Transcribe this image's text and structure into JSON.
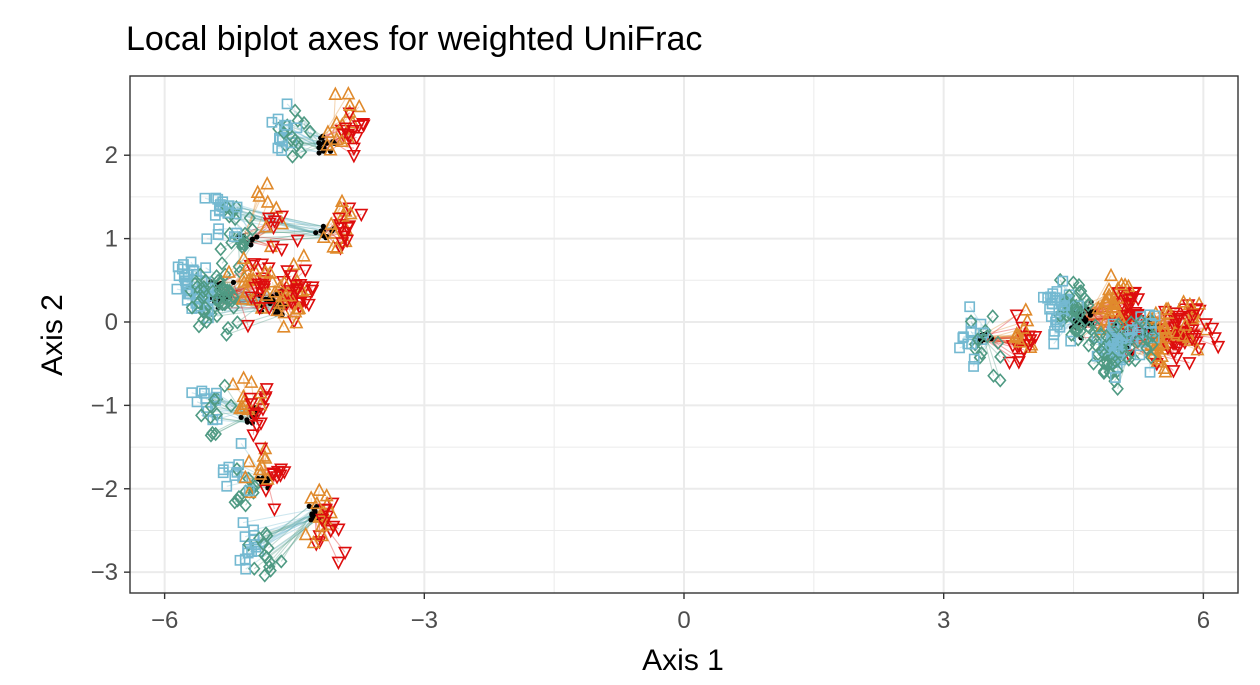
{
  "chart_data": {
    "type": "scatter",
    "title": "Local biplot axes for weighted UniFrac",
    "xlabel": "Axis 1",
    "ylabel": "Axis 2",
    "xlim": [
      -6.4,
      6.4
    ],
    "ylim": [
      -3.25,
      2.95
    ],
    "x_ticks": [
      -6,
      -3,
      0,
      3,
      6
    ],
    "x_tick_labels": [
      "−6",
      "−3",
      "0",
      "3",
      "6"
    ],
    "y_ticks": [
      -3,
      -2,
      -1,
      0,
      1,
      2
    ],
    "y_tick_labels": [
      "−3",
      "−2",
      "−1",
      "0",
      "1",
      "2"
    ],
    "grid": true,
    "background": "#ffffff",
    "grid_color": "#ebebeb",
    "series": [
      {
        "marker": "square-open",
        "color": "#74b9d1"
      },
      {
        "marker": "diamond-open",
        "color": "#4f9a83"
      },
      {
        "marker": "triangle-up-open",
        "color": "#e08a2c"
      },
      {
        "marker": "triangle-down-open",
        "color": "#dd0d0d"
      }
    ],
    "groups": [
      {
        "center": [
          -4.15,
          2.15
        ],
        "spread": 0.06,
        "n": 14,
        "square": [
          -4.65,
          2.3
        ],
        "diamond": [
          -4.5,
          2.25
        ],
        "tri_up": [
          -3.95,
          2.4
        ],
        "tri_down": [
          -3.85,
          2.3
        ]
      },
      {
        "center": [
          -4.15,
          1.07
        ],
        "spread": 0.05,
        "n": 12,
        "square": [
          -5.35,
          1.3
        ],
        "diamond": [
          -5.15,
          1.2
        ],
        "tri_up": [
          -4.0,
          1.2
        ],
        "tri_down": [
          -3.9,
          1.1
        ]
      },
      {
        "center": [
          -5.05,
          1.0
        ],
        "spread": 0.05,
        "n": 8,
        "square": [
          -5.3,
          1.1
        ],
        "diamond": [
          -5.2,
          1.0
        ],
        "tri_up": [
          -4.8,
          1.2
        ],
        "tri_down": [
          -4.72,
          1.1
        ]
      },
      {
        "center": [
          -4.75,
          0.2
        ],
        "spread": 0.08,
        "n": 24,
        "square": [
          -5.6,
          0.35
        ],
        "diamond": [
          -5.3,
          0.2
        ],
        "tri_up": [
          -4.55,
          0.35
        ],
        "tri_down": [
          -4.45,
          0.3
        ]
      },
      {
        "center": [
          -5.35,
          0.35
        ],
        "spread": 0.08,
        "n": 18,
        "square": [
          -5.75,
          0.4
        ],
        "diamond": [
          -5.55,
          0.3
        ],
        "tri_up": [
          -5.0,
          0.5
        ],
        "tri_down": [
          -4.9,
          0.4
        ]
      },
      {
        "center": [
          -5.0,
          -1.1
        ],
        "spread": 0.05,
        "n": 12,
        "square": [
          -5.55,
          -0.95
        ],
        "diamond": [
          -5.4,
          -1.1
        ],
        "tri_up": [
          -5.05,
          -1.0
        ],
        "tri_down": [
          -4.95,
          -1.1
        ]
      },
      {
        "center": [
          -4.85,
          -1.9
        ],
        "spread": 0.05,
        "n": 10,
        "square": [
          -5.2,
          -1.9
        ],
        "diamond": [
          -5.1,
          -2.0
        ],
        "tri_up": [
          -4.85,
          -1.8
        ],
        "tri_down": [
          -4.75,
          -1.9
        ]
      },
      {
        "center": [
          -4.25,
          -2.3
        ],
        "spread": 0.05,
        "n": 14,
        "square": [
          -5.0,
          -2.7
        ],
        "diamond": [
          -4.85,
          -2.8
        ],
        "tri_up": [
          -4.2,
          -2.3
        ],
        "tri_down": [
          -4.1,
          -2.45
        ]
      },
      {
        "center": [
          3.45,
          -0.2
        ],
        "spread": 0.04,
        "n": 14,
        "square": [
          3.35,
          -0.2
        ],
        "diamond": [
          3.45,
          -0.3
        ],
        "tri_up": [
          3.9,
          -0.15
        ],
        "tri_down": [
          3.95,
          -0.25
        ]
      },
      {
        "center": [
          4.6,
          0.05
        ],
        "spread": 0.08,
        "n": 36,
        "square": [
          4.35,
          0.2
        ],
        "diamond": [
          4.55,
          0.1
        ],
        "tri_up": [
          5.0,
          0.2
        ],
        "tri_down": [
          5.15,
          0.05
        ]
      },
      {
        "center": [
          5.1,
          -0.15
        ],
        "spread": 0.08,
        "n": 36,
        "square": [
          4.95,
          -0.3
        ],
        "diamond": [
          4.9,
          -0.4
        ],
        "tri_up": [
          5.5,
          -0.2
        ],
        "tri_down": [
          5.7,
          -0.15
        ]
      },
      {
        "center": [
          5.4,
          -0.05
        ],
        "spread": 0.05,
        "n": 16,
        "square": [
          5.3,
          -0.1
        ],
        "diamond": [
          5.25,
          -0.2
        ],
        "tri_up": [
          5.85,
          0.0
        ],
        "tri_down": [
          5.95,
          -0.05
        ]
      }
    ]
  }
}
